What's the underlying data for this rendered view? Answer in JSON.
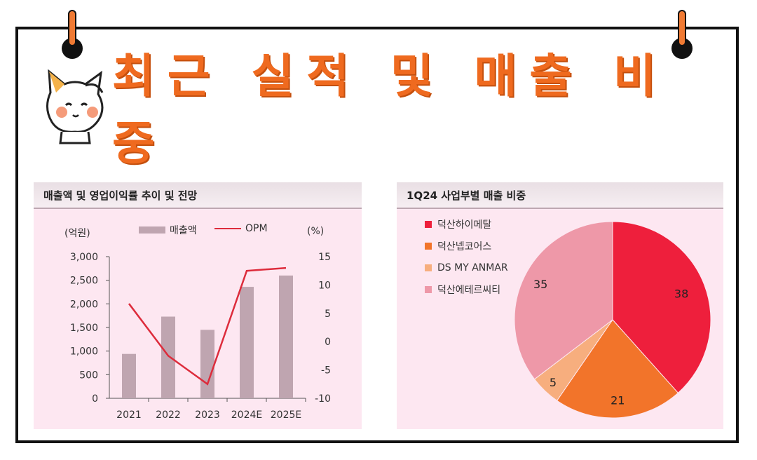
{
  "title": "최근 실적 및 매출 비중",
  "left_panel": {
    "heading": "매출액 및 영업이익률 추이 및 전망",
    "y_left_unit": "(억원)",
    "y_right_unit": "(%)",
    "legend_bar": "매출액",
    "legend_line": "OPM"
  },
  "right_panel": {
    "heading": "1Q24 사업부별 매출 비중"
  },
  "colors": {
    "bar": "#bfa5b0",
    "line": "#dd2c3c",
    "pie": [
      "#ee1f3c",
      "#f2742a",
      "#f7ae7e",
      "#ee98a8"
    ]
  },
  "chart_data": [
    {
      "type": "bar",
      "categories": [
        "2021",
        "2022",
        "2023",
        "2024E",
        "2025E"
      ],
      "series": [
        {
          "name": "매출액",
          "type": "bar",
          "axis": "left",
          "values": [
            940,
            1730,
            1450,
            2360,
            2600
          ]
        },
        {
          "name": "OPM",
          "type": "line",
          "axis": "right",
          "values": [
            6.7,
            -2.5,
            -7.5,
            12.5,
            13.0
          ]
        }
      ],
      "y_left_ticks": [
        "3,000",
        "2,500",
        "2,000",
        "1,500",
        "1,000",
        "500",
        "0"
      ],
      "y_right_ticks": [
        "15",
        "10",
        "5",
        "0",
        "-5",
        "-10"
      ],
      "ylim_left": [
        0,
        3000
      ],
      "ylim_right": [
        -10,
        15
      ],
      "legend": "top"
    },
    {
      "type": "pie",
      "labels": [
        "덕산하이메탈",
        "덕산넵코어스",
        "DS MY ANMAR",
        "덕산에테르씨티"
      ],
      "values": [
        38,
        21,
        5,
        35
      ],
      "value_labels": [
        "38",
        "21",
        "5",
        "35"
      ],
      "legend": "top-left"
    }
  ]
}
